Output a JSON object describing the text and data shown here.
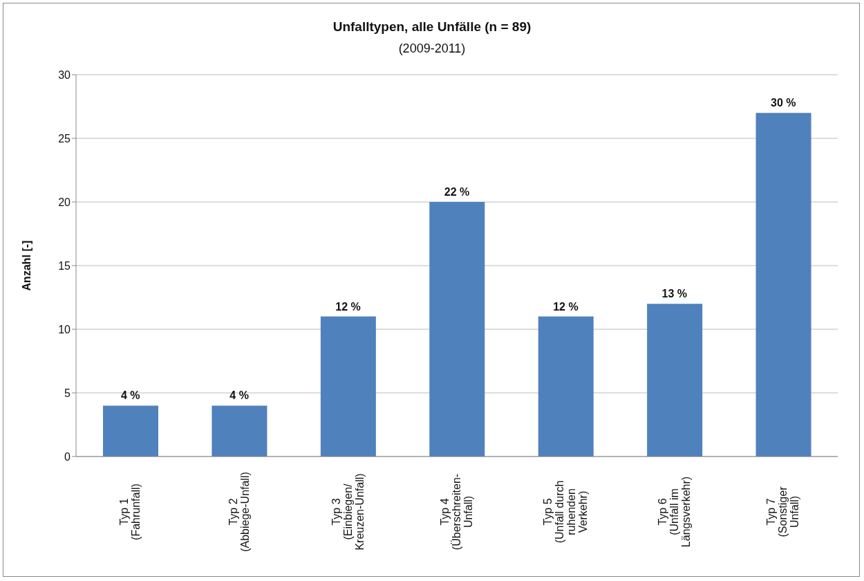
{
  "chart_data": {
    "type": "bar",
    "title": "Unfalltypen, alle Unfälle (n = 89)",
    "subtitle": "(2009-2011)",
    "ylabel": "Anzahl [-]",
    "categories": [
      "Typ 1\n(Fahrunfall)",
      "Typ 2\n(Abbiege-Unfall)",
      "Typ 3\n(Einbiegen/\nKreuzen-Unfall)",
      "Typ 4\n(Überschreiten-\nUnfall)",
      "Typ 5\n(Unfall durch\nruhenden\nVerkehr)",
      "Typ 6\n(Unfall im\nLängsverkehr)",
      "Typ 7\n(Sonstiger\nUnfall)"
    ],
    "values": [
      4,
      4,
      11,
      20,
      11,
      12,
      27
    ],
    "annotations": [
      {
        "text": "4 %",
        "x": "Typ 1\n(Fahrunfall)",
        "y": 4
      },
      {
        "text": "4 %",
        "x": "Typ 2\n(Abbiege-Unfall)",
        "y": 4
      },
      {
        "text": "12 %",
        "x": "Typ 3\n(Einbiegen/\nKreuzen-Unfall)",
        "y": 11
      },
      {
        "text": "22 %",
        "x": "Typ 4\n(Überschreiten-\nUnfall)",
        "y": 20
      },
      {
        "text": "12 %",
        "x": "Typ 5\n(Unfall durch\nruhenden\nVerkehr)",
        "y": 11
      },
      {
        "text": "13 %",
        "x": "Typ 6\n(Unfall im\nLängsverkehr)",
        "y": 12
      },
      {
        "text": "30 %",
        "x": "Typ 7\n(Sonstiger\nUnfall)",
        "y": 27
      }
    ],
    "color": "#4f81bd",
    "ylim": [
      0,
      30
    ],
    "yticks": [
      0,
      5,
      10,
      15,
      20,
      25,
      30
    ],
    "grid": "y"
  }
}
